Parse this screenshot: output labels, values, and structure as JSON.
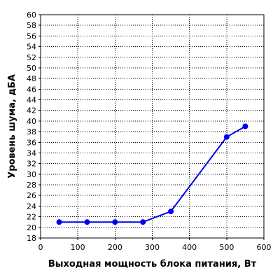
{
  "chart_data": {
    "type": "line",
    "xlabel": "Выходная мощность блока питания, Вт",
    "ylabel": "Уровень шума, дБА",
    "xlim": [
      0,
      600
    ],
    "ylim": [
      18,
      60
    ],
    "x_ticks": [
      0,
      100,
      200,
      300,
      400,
      500,
      600
    ],
    "y_ticks": [
      18,
      20,
      22,
      24,
      26,
      28,
      30,
      32,
      34,
      36,
      38,
      40,
      42,
      44,
      46,
      48,
      50,
      52,
      54,
      56,
      58,
      60
    ],
    "grid": true,
    "legend": "none",
    "series": [
      {
        "color": "#0000ee",
        "points": [
          {
            "x": 50,
            "y": 21
          },
          {
            "x": 125,
            "y": 21
          },
          {
            "x": 200,
            "y": 21
          },
          {
            "x": 275,
            "y": 21
          },
          {
            "x": 350,
            "y": 23
          },
          {
            "x": 500,
            "y": 37
          },
          {
            "x": 550,
            "y": 39
          }
        ]
      }
    ]
  }
}
